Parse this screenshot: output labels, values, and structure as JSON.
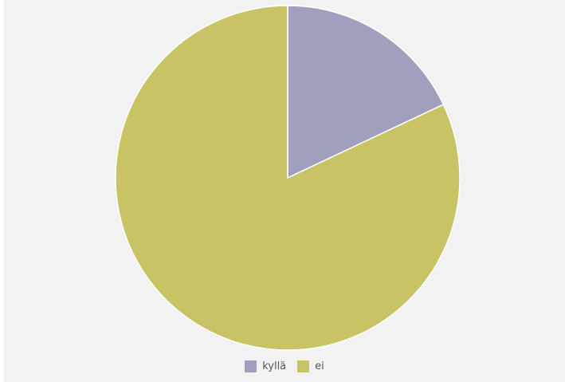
{
  "chart_data": {
    "type": "pie",
    "title": "",
    "categories": [
      "kyllä",
      "ei"
    ],
    "values": [
      18,
      82
    ],
    "colors": [
      "#a0a0be",
      "#c8c364"
    ],
    "legend_position": "bottom"
  },
  "legend": {
    "items": [
      {
        "label": "kyllä",
        "color": "#a0a0be"
      },
      {
        "label": "ei",
        "color": "#c8c364"
      }
    ]
  }
}
